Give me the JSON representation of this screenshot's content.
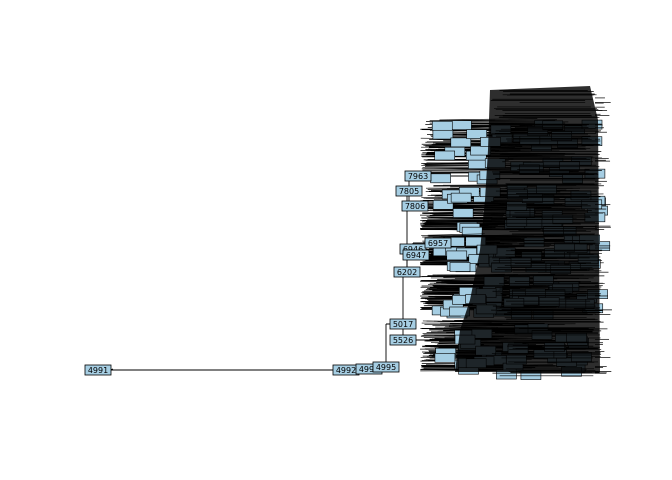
{
  "diagram": {
    "type": "tree",
    "node_fill": "#a6cee3",
    "node_stroke": "#000000",
    "edge_color": "#000000",
    "root": {
      "label": "4991",
      "children": [
        {
          "label": "4992",
          "children": [
            {
              "label": "4993",
              "children": [
                {
                  "label": "4995",
                  "children": [
                    {
                      "label": "5017",
                      "children": [
                        {
                          "label": "5526"
                        },
                        {
                          "label": "6202",
                          "children": [
                            {
                              "label": "6946",
                              "children": [
                                {
                                  "label": "6947"
                                },
                                {
                                  "label": "6957"
                                }
                              ]
                            },
                            {
                              "label": "7805",
                              "children": [
                                {
                                  "label": "7806"
                                },
                                {
                                  "label": "7963"
                                }
                              ]
                            }
                          ]
                        }
                      ]
                    }
                  ]
                }
              ]
            }
          ]
        }
      ]
    }
  }
}
